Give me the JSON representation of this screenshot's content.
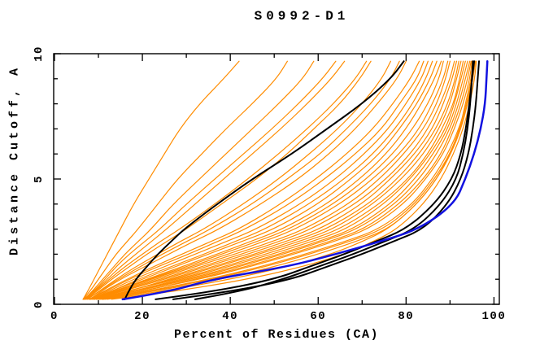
{
  "title": "S0992-D1",
  "axes": {
    "xlabel": "Percent of Residues (CA)",
    "ylabel": "Distance Cutoff, A",
    "xlim": [
      0,
      101.3
    ],
    "ylim": [
      0,
      10
    ],
    "x_major_ticks": [
      0,
      20,
      40,
      60,
      80,
      100
    ],
    "x_minor_ticks": [
      10,
      30,
      50,
      70,
      90
    ],
    "y_major_ticks": [
      0,
      5,
      10
    ],
    "y_minor_ticks": [
      1,
      2,
      3,
      4,
      6,
      7,
      8,
      9
    ],
    "grid": "off",
    "tick_direction": "in",
    "box": "on"
  },
  "colors": {
    "orange": "#ff8c00",
    "black": "#000000",
    "blue": "#1212e0",
    "background": "#ffffff",
    "axis": "#000000"
  },
  "chart_data": {
    "type": "line",
    "title": "S0992-D1",
    "xlabel": "Percent of Residues (CA)",
    "ylabel": "Distance Cutoff, A",
    "note_axis_mapping": "x = percent of residues (CA) within distance cutoff, y = distance cutoff in Angstroms; each series lists percent values at the shared cutoffs",
    "cutoffs": [
      0.2,
      0.5,
      1,
      1.5,
      2,
      2.5,
      3,
      4,
      5,
      6,
      7,
      8,
      9,
      9.7
    ],
    "series": [
      {
        "color": "orange",
        "percents": [
          6.5,
          7.5,
          9,
          10.5,
          12,
          13.5,
          15,
          18,
          21.5,
          25,
          28.5,
          33,
          38.5,
          42
        ]
      },
      {
        "color": "orange",
        "percents": [
          6.5,
          8,
          10,
          12,
          14,
          16.5,
          19,
          23.5,
          28,
          33.5,
          39,
          45,
          50.5,
          53
        ]
      },
      {
        "color": "orange",
        "percents": [
          6.8,
          8.5,
          11,
          13.5,
          16,
          19,
          22,
          27,
          33,
          39,
          45,
          51,
          56.5,
          59
        ]
      },
      {
        "color": "orange",
        "percents": [
          7,
          9,
          12,
          15,
          18.5,
          22,
          25.5,
          32,
          38.5,
          45,
          51.5,
          57.5,
          63,
          66
        ]
      },
      {
        "color": "orange",
        "percents": [
          7.2,
          9.5,
          13,
          17,
          21,
          25.5,
          30,
          38,
          46,
          53,
          59,
          65,
          69.5,
          72
        ]
      },
      {
        "color": "orange",
        "percents": [
          7.5,
          10,
          14,
          18.5,
          23.5,
          28.5,
          34,
          43,
          51,
          58,
          64.5,
          70,
          74.5,
          76.5
        ]
      },
      {
        "color": "orange",
        "percents": [
          8,
          10.5,
          15,
          20.5,
          26,
          31.5,
          37.5,
          47,
          55.5,
          62.5,
          68.5,
          73.5,
          78,
          80
        ]
      },
      {
        "color": "orange",
        "percents": [
          8,
          11,
          16.5,
          22.5,
          29,
          35.5,
          42,
          51.5,
          59.5,
          66.5,
          72.5,
          77,
          81,
          83
        ]
      },
      {
        "color": "orange",
        "percents": [
          8.2,
          12,
          18,
          25,
          32,
          39,
          46,
          56,
          64,
          70.5,
          76,
          80,
          83.5,
          85
        ]
      },
      {
        "color": "orange",
        "percents": [
          8.5,
          12.5,
          20,
          27.5,
          35,
          42.5,
          50,
          60,
          67.5,
          74,
          78.5,
          82.5,
          85.5,
          87
        ]
      },
      {
        "color": "orange",
        "percents": [
          8.5,
          13,
          21.5,
          30,
          38,
          46,
          53.5,
          63.5,
          71,
          77,
          81.5,
          85,
          87.5,
          88.5
        ]
      },
      {
        "color": "orange",
        "percents": [
          9,
          14,
          23,
          32,
          41,
          49.5,
          57,
          67,
          74,
          79.5,
          84,
          87,
          89,
          90
        ]
      },
      {
        "color": "orange",
        "percents": [
          9,
          15,
          25,
          34.5,
          44,
          52.5,
          60.5,
          70,
          76.5,
          82,
          86,
          88.5,
          90.5,
          91.5
        ]
      },
      {
        "color": "orange",
        "percents": [
          9.5,
          16,
          27,
          37,
          46.5,
          55.5,
          63.5,
          72.5,
          79,
          84,
          87.5,
          90,
          91.5,
          92.5
        ]
      },
      {
        "color": "orange",
        "percents": [
          10,
          17,
          29,
          39.5,
          49.5,
          58.5,
          66.5,
          75,
          81,
          85.5,
          89,
          91,
          92.5,
          93.5
        ]
      },
      {
        "color": "orange",
        "percents": [
          10,
          18,
          31,
          42,
          52,
          61,
          69,
          77.5,
          83,
          87,
          90,
          92,
          93.5,
          94.5
        ]
      },
      {
        "color": "orange",
        "percents": [
          10.5,
          19,
          33,
          44.5,
          54.5,
          63.5,
          71.5,
          79.5,
          84.5,
          88.5,
          91,
          93,
          94.5,
          95
        ]
      },
      {
        "color": "orange",
        "percents": [
          11,
          20.5,
          35,
          47,
          57,
          66,
          74,
          81.5,
          86,
          89.5,
          92,
          93.8,
          95,
          95.5
        ]
      },
      {
        "color": "orange",
        "percents": [
          12,
          24,
          40,
          53,
          63,
          70,
          76,
          82.5,
          87,
          90,
          92.3,
          94,
          95.2,
          95.8
        ]
      },
      {
        "color": "orange",
        "percents": [
          13,
          27,
          44,
          56.5,
          66,
          72.5,
          78,
          84,
          88,
          90.8,
          93,
          94.5,
          95.6,
          96
        ]
      },
      {
        "color": "orange",
        "percents": [
          6.8,
          9.2,
          12.5,
          16,
          20,
          24,
          28.5,
          36.5,
          44,
          51,
          57.5,
          63.5,
          68.5,
          71
        ]
      },
      {
        "color": "orange",
        "percents": [
          7.2,
          10.2,
          14.5,
          19.5,
          24.5,
          30,
          35.5,
          45,
          53,
          60.5,
          66.5,
          72,
          76.5,
          78.5
        ]
      },
      {
        "color": "orange",
        "percents": [
          7.8,
          11.5,
          17,
          23.5,
          30.5,
          37,
          43.5,
          53.5,
          61.5,
          68.5,
          74.5,
          78.5,
          82.5,
          84
        ]
      },
      {
        "color": "orange",
        "percents": [
          8.2,
          12.8,
          19,
          26.5,
          34,
          41,
          48,
          58,
          66,
          72.5,
          77.5,
          81.5,
          84.5,
          86
        ]
      },
      {
        "color": "orange",
        "percents": [
          8.8,
          13.5,
          22,
          31,
          39.5,
          47.5,
          55,
          65,
          72.5,
          78.5,
          83,
          86,
          88.5,
          89.5
        ]
      },
      {
        "color": "orange",
        "percents": [
          9.2,
          14.5,
          24,
          33.5,
          42.5,
          51,
          58.5,
          68.5,
          75.5,
          81,
          85,
          87.8,
          90,
          91
        ]
      },
      {
        "color": "orange",
        "percents": [
          9.8,
          16.5,
          26,
          36,
          45.5,
          54,
          62,
          71.5,
          78,
          83,
          86.8,
          89.5,
          91.2,
          92
        ]
      },
      {
        "color": "orange",
        "percents": [
          10.2,
          17.5,
          30,
          41,
          51,
          60,
          68,
          76.5,
          82,
          86.2,
          89.5,
          91.5,
          93,
          94
        ]
      },
      {
        "color": "orange",
        "percents": [
          10.8,
          19.5,
          32,
          43.5,
          53.5,
          62.5,
          70.5,
          78.5,
          84,
          88,
          90.5,
          92.5,
          94,
          94.8
        ]
      },
      {
        "color": "orange",
        "percents": [
          11.5,
          21,
          36,
          48,
          58,
          67,
          75,
          82,
          86.5,
          90,
          92.2,
          93.5,
          94.8,
          95.3
        ]
      },
      {
        "color": "orange",
        "percents": [
          6.6,
          8.8,
          11.5,
          14,
          17,
          20.5,
          24,
          30,
          36.5,
          43,
          49.5,
          55.5,
          61,
          64
        ]
      },
      {
        "color": "orange",
        "percents": [
          9.5,
          15.5,
          28,
          38.5,
          48,
          57,
          65,
          74,
          80.5,
          85,
          88.2,
          90.8,
          92.2,
          93
        ]
      },
      {
        "color": "orange",
        "percents": [
          11,
          22,
          38,
          50,
          60,
          68.5,
          76,
          82.5,
          87,
          90.2,
          92.5,
          94,
          95.2,
          95.7
        ]
      },
      {
        "color": "orange",
        "percents": [
          8.5,
          13.2,
          21,
          29,
          37,
          44.5,
          52,
          62,
          69.5,
          75.5,
          80,
          83.5,
          86.5,
          88
        ]
      },
      {
        "color": "black",
        "percents": [
          16,
          16.8,
          18.5,
          21,
          23.5,
          26.5,
          29.5,
          37,
          45,
          54,
          62,
          70,
          76.5,
          79.5
        ]
      },
      {
        "color": "black",
        "percents": [
          23,
          36,
          50,
          58,
          66,
          73,
          80,
          86.5,
          90.5,
          92.5,
          93.6,
          94.4,
          95,
          95.5
        ]
      },
      {
        "color": "black",
        "percents": [
          27,
          40,
          54,
          62,
          70,
          77,
          84,
          89.5,
          92.5,
          94.2,
          95.2,
          95.9,
          96.3,
          96.6
        ]
      },
      {
        "color": "black",
        "percents": [
          32,
          42,
          52,
          60,
          68,
          75,
          82,
          88,
          91.5,
          93,
          94,
          94.6,
          95,
          95.2
        ]
      },
      {
        "color": "blue",
        "percents": [
          15.5,
          26,
          36,
          53,
          64,
          74,
          83,
          91,
          93.5,
          95.5,
          97,
          98,
          98.3,
          98.5
        ]
      }
    ],
    "line_widths": {
      "orange": 1.2,
      "black": 2.0,
      "blue": 2.5
    },
    "legend": "none"
  }
}
